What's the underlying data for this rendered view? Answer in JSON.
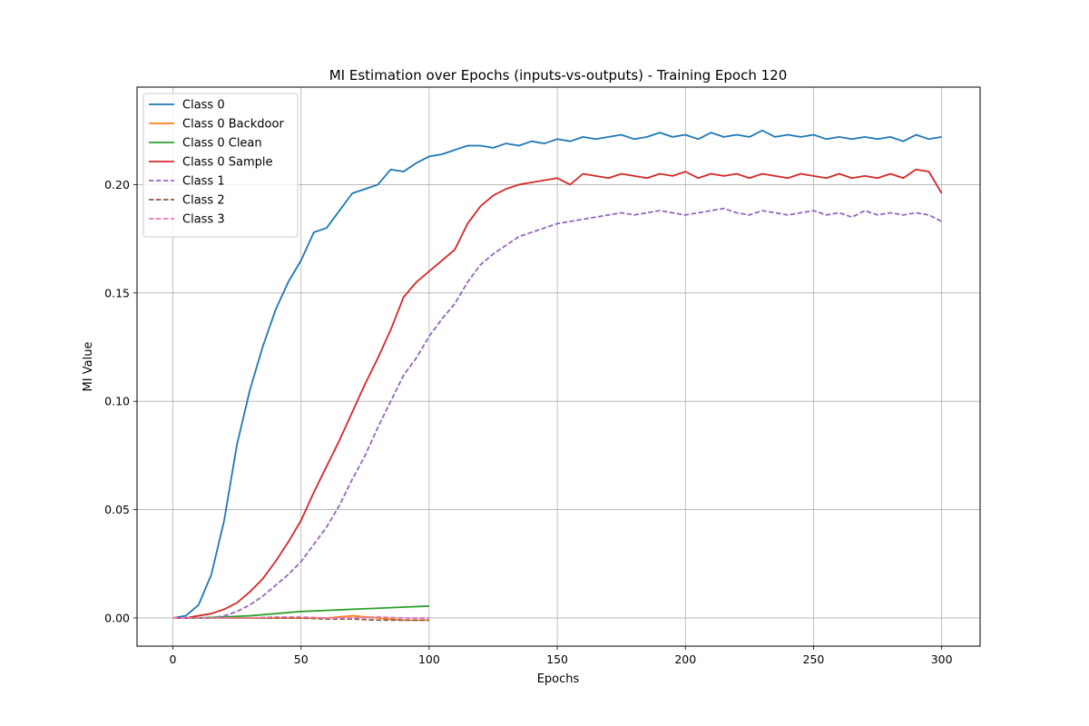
{
  "chart_data": {
    "type": "line",
    "title": "MI Estimation over Epochs (inputs-vs-outputs) - Training Epoch 120",
    "xlabel": "Epochs",
    "ylabel": "MI Value",
    "xlim": [
      -14,
      315
    ],
    "ylim": [
      -0.013,
      0.245
    ],
    "xticks": [
      0,
      50,
      100,
      150,
      200,
      250,
      300
    ],
    "yticks": [
      0.0,
      0.05,
      0.1,
      0.15,
      0.2
    ],
    "xtick_labels": [
      "0",
      "50",
      "100",
      "150",
      "200",
      "250",
      "300"
    ],
    "ytick_labels": [
      "0.00",
      "0.05",
      "0.10",
      "0.15",
      "0.20"
    ],
    "grid": true,
    "legend_position": "top-left",
    "series": [
      {
        "name": "Class 0",
        "color": "#1f77b4",
        "dash": "solid",
        "x": [
          0,
          5,
          10,
          15,
          20,
          25,
          30,
          35,
          40,
          45,
          50,
          55,
          60,
          65,
          70,
          75,
          80,
          85,
          90,
          95,
          100,
          105,
          110,
          115,
          120,
          125,
          130,
          135,
          140,
          145,
          150,
          155,
          160,
          165,
          170,
          175,
          180,
          185,
          190,
          195,
          200,
          205,
          210,
          215,
          220,
          225,
          230,
          235,
          240,
          245,
          250,
          255,
          260,
          265,
          270,
          275,
          280,
          285,
          290,
          295,
          300
        ],
        "values": [
          0.0,
          0.001,
          0.006,
          0.02,
          0.045,
          0.08,
          0.105,
          0.125,
          0.142,
          0.155,
          0.165,
          0.178,
          0.18,
          0.188,
          0.196,
          0.198,
          0.2,
          0.207,
          0.206,
          0.21,
          0.213,
          0.214,
          0.216,
          0.218,
          0.218,
          0.217,
          0.219,
          0.218,
          0.22,
          0.219,
          0.221,
          0.22,
          0.222,
          0.221,
          0.222,
          0.223,
          0.221,
          0.222,
          0.224,
          0.222,
          0.223,
          0.221,
          0.224,
          0.222,
          0.223,
          0.222,
          0.225,
          0.222,
          0.223,
          0.222,
          0.223,
          0.221,
          0.222,
          0.221,
          0.222,
          0.221,
          0.222,
          0.22,
          0.223,
          0.221,
          0.222
        ]
      },
      {
        "name": "Class 0 Backdoor",
        "color": "#ff7f0e",
        "dash": "solid",
        "x": [
          0,
          10,
          20,
          30,
          40,
          50,
          60,
          70,
          80,
          90,
          100
        ],
        "values": [
          0.0,
          0.0,
          0.0,
          0.0,
          0.0,
          0.0,
          0.0,
          0.001,
          0.0,
          -0.001,
          -0.001
        ]
      },
      {
        "name": "Class 0 Clean",
        "color": "#2ca02c",
        "dash": "solid",
        "x": [
          0,
          10,
          20,
          30,
          40,
          50,
          60,
          70,
          80,
          90,
          100
        ],
        "values": [
          0.0,
          0.0,
          0.0005,
          0.001,
          0.002,
          0.003,
          0.0035,
          0.004,
          0.0045,
          0.005,
          0.0055
        ]
      },
      {
        "name": "Class 0 Sample",
        "color": "#d62728",
        "dash": "solid",
        "x": [
          0,
          5,
          10,
          15,
          20,
          25,
          30,
          35,
          40,
          45,
          50,
          55,
          60,
          65,
          70,
          75,
          80,
          85,
          90,
          95,
          100,
          105,
          110,
          115,
          120,
          125,
          130,
          135,
          140,
          145,
          150,
          155,
          160,
          165,
          170,
          175,
          180,
          185,
          190,
          195,
          200,
          205,
          210,
          215,
          220,
          225,
          230,
          235,
          240,
          245,
          250,
          255,
          260,
          265,
          270,
          275,
          280,
          285,
          290,
          295,
          300
        ],
        "values": [
          0.0,
          0.0,
          0.001,
          0.002,
          0.004,
          0.007,
          0.012,
          0.018,
          0.026,
          0.035,
          0.045,
          0.058,
          0.07,
          0.082,
          0.095,
          0.108,
          0.12,
          0.133,
          0.148,
          0.155,
          0.16,
          0.165,
          0.17,
          0.182,
          0.19,
          0.195,
          0.198,
          0.2,
          0.201,
          0.202,
          0.203,
          0.2,
          0.205,
          0.204,
          0.203,
          0.205,
          0.204,
          0.203,
          0.205,
          0.204,
          0.206,
          0.203,
          0.205,
          0.204,
          0.205,
          0.203,
          0.205,
          0.204,
          0.203,
          0.205,
          0.204,
          0.203,
          0.205,
          0.203,
          0.204,
          0.203,
          0.205,
          0.203,
          0.207,
          0.206,
          0.196
        ]
      },
      {
        "name": "Class 1",
        "color": "#9467bd",
        "dash": "dashed",
        "x": [
          0,
          5,
          10,
          15,
          20,
          25,
          30,
          35,
          40,
          45,
          50,
          55,
          60,
          65,
          70,
          75,
          80,
          85,
          90,
          95,
          100,
          105,
          110,
          115,
          120,
          125,
          130,
          135,
          140,
          145,
          150,
          155,
          160,
          165,
          170,
          175,
          180,
          185,
          190,
          195,
          200,
          205,
          210,
          215,
          220,
          225,
          230,
          235,
          240,
          245,
          250,
          255,
          260,
          265,
          270,
          275,
          280,
          285,
          290,
          295,
          300
        ],
        "values": [
          0.0,
          0.0,
          0.0,
          0.0,
          0.001,
          0.003,
          0.006,
          0.01,
          0.015,
          0.02,
          0.026,
          0.034,
          0.042,
          0.052,
          0.064,
          0.075,
          0.088,
          0.1,
          0.112,
          0.12,
          0.13,
          0.138,
          0.145,
          0.155,
          0.163,
          0.168,
          0.172,
          0.176,
          0.178,
          0.18,
          0.182,
          0.183,
          0.184,
          0.185,
          0.186,
          0.187,
          0.186,
          0.187,
          0.188,
          0.187,
          0.186,
          0.187,
          0.188,
          0.189,
          0.187,
          0.186,
          0.188,
          0.187,
          0.186,
          0.187,
          0.188,
          0.186,
          0.187,
          0.185,
          0.188,
          0.186,
          0.187,
          0.186,
          0.187,
          0.186,
          0.183
        ]
      },
      {
        "name": "Class 2",
        "color": "#8c564b",
        "dash": "dashed",
        "x": [
          0,
          10,
          20,
          30,
          40,
          50,
          60,
          70,
          80,
          90,
          100
        ],
        "values": [
          0.0,
          0.0,
          0.0,
          0.0,
          0.0,
          0.0,
          -0.0005,
          -0.0005,
          -0.001,
          -0.001,
          -0.001
        ]
      },
      {
        "name": "Class 3",
        "color": "#e377c2",
        "dash": "dashed",
        "x": [
          0,
          10,
          20,
          30,
          40,
          50,
          60,
          70,
          80,
          90,
          100
        ],
        "values": [
          0.0,
          0.0,
          0.0,
          0.0,
          0.0005,
          0.0005,
          0.0,
          0.0,
          0.0005,
          0.0,
          0.0
        ]
      }
    ]
  }
}
